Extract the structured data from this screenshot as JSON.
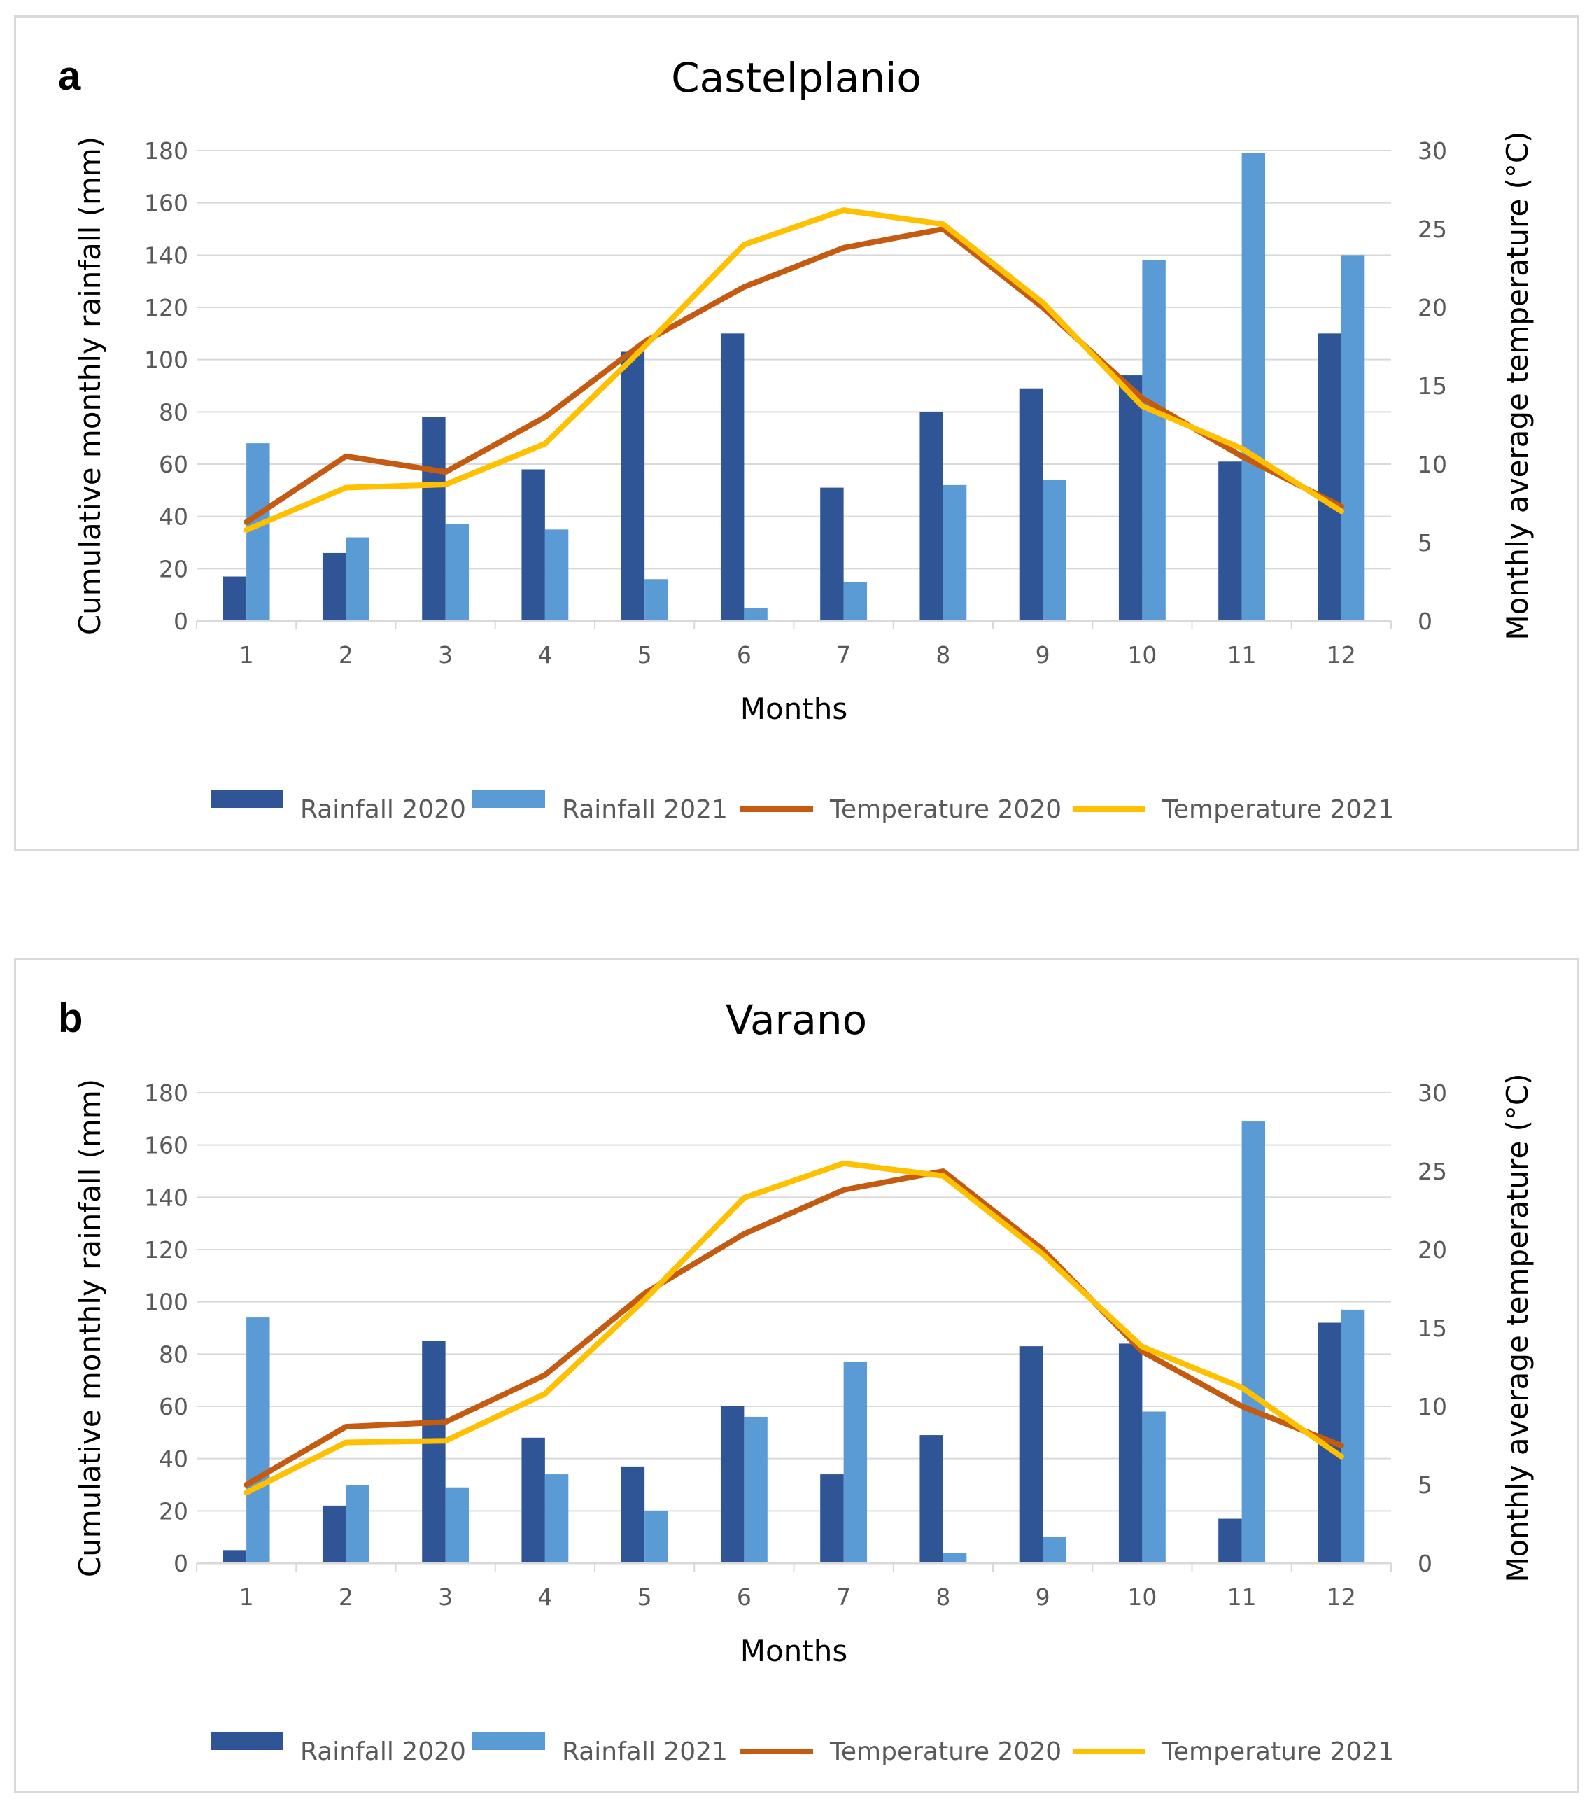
{
  "colors": {
    "rainfall_2020": "#2f5597",
    "rainfall_2021": "#5b9bd5",
    "temperature_2020": "#c55a11",
    "temperature_2021": "#ffc000",
    "grid": "#d9d9d9",
    "axis_text": "#595959"
  },
  "chart_data": [
    {
      "panel": "a",
      "type": "bar",
      "title": "Castelplanio",
      "xlabel": "Months",
      "ylabel": "Cumulative monthly rainfall (mm)",
      "y2label": "Monthly average temperature (°C)",
      "ylim": [
        0,
        180
      ],
      "y2lim": [
        0,
        30
      ],
      "yticks": [
        "0",
        "20",
        "40",
        "60",
        "80",
        "100",
        "120",
        "140",
        "160",
        "180"
      ],
      "y2ticks": [
        "0",
        "5",
        "10",
        "15",
        "20",
        "25",
        "30"
      ],
      "categories": [
        "1",
        "2",
        "3",
        "4",
        "5",
        "6",
        "7",
        "8",
        "9",
        "10",
        "11",
        "12"
      ],
      "series": [
        {
          "name": "Rainfall 2020",
          "kind": "bar",
          "axis": "left",
          "values": [
            17,
            26,
            78,
            58,
            103,
            110,
            51,
            80,
            89,
            94,
            61,
            110
          ]
        },
        {
          "name": "Rainfall 2021",
          "kind": "bar",
          "axis": "left",
          "values": [
            68,
            32,
            37,
            35,
            16,
            5,
            15,
            52,
            54,
            138,
            179,
            140
          ]
        },
        {
          "name": "Temperature 2020",
          "kind": "line",
          "axis": "right",
          "values": [
            6.3,
            10.5,
            9.5,
            13.0,
            17.8,
            21.3,
            23.8,
            25.0,
            20.0,
            14.2,
            10.5,
            7.3
          ]
        },
        {
          "name": "Temperature 2021",
          "kind": "line",
          "axis": "right",
          "values": [
            5.8,
            8.5,
            8.7,
            11.3,
            17.5,
            24.0,
            26.2,
            25.3,
            20.3,
            13.7,
            11.0,
            7.0
          ]
        }
      ],
      "legend_position": "bottom"
    },
    {
      "panel": "b",
      "type": "bar",
      "title": "Varano",
      "xlabel": "Months",
      "ylabel": "Cumulative monthly rainfall (mm)",
      "y2label": "Monthly average temperature (°C)",
      "ylim": [
        0,
        180
      ],
      "y2lim": [
        0,
        30
      ],
      "yticks": [
        "0",
        "20",
        "40",
        "60",
        "80",
        "100",
        "120",
        "140",
        "160",
        "180"
      ],
      "y2ticks": [
        "0",
        "5",
        "10",
        "15",
        "20",
        "25",
        "30"
      ],
      "categories": [
        "1",
        "2",
        "3",
        "4",
        "5",
        "6",
        "7",
        "8",
        "9",
        "10",
        "11",
        "12"
      ],
      "series": [
        {
          "name": "Rainfall 2020",
          "kind": "bar",
          "axis": "left",
          "values": [
            5,
            22,
            85,
            48,
            37,
            60,
            34,
            49,
            83,
            84,
            17,
            92
          ]
        },
        {
          "name": "Rainfall 2021",
          "kind": "bar",
          "axis": "left",
          "values": [
            94,
            30,
            29,
            34,
            20,
            56,
            77,
            4,
            10,
            58,
            169,
            97
          ]
        },
        {
          "name": "Temperature 2020",
          "kind": "line",
          "axis": "right",
          "values": [
            5.0,
            8.7,
            9.0,
            12.0,
            17.2,
            21.0,
            23.8,
            25.0,
            20.0,
            13.5,
            10.0,
            7.5
          ]
        },
        {
          "name": "Temperature 2021",
          "kind": "line",
          "axis": "right",
          "values": [
            4.5,
            7.7,
            7.8,
            10.8,
            16.8,
            23.3,
            25.5,
            24.7,
            19.7,
            13.8,
            11.2,
            6.8
          ]
        }
      ],
      "legend_position": "bottom"
    }
  ]
}
